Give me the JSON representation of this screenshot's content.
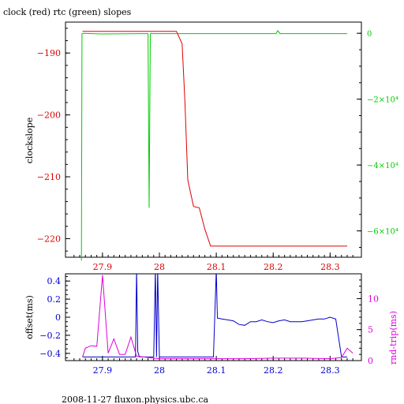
{
  "title": "clock (red) rtc (green) slopes",
  "footer": "2008-11-27 fluxon.physics.ubc.ca",
  "colors": {
    "red": "#dd0000",
    "green": "#00cc00",
    "blue": "#0000cc",
    "magenta": "#dd00dd",
    "black": "#000000"
  },
  "chart_data": [
    {
      "type": "line",
      "title": "clock (red) rtc (green) slopes",
      "ylabel": "clockslope",
      "xlim": [
        27.835,
        28.355
      ],
      "ylim": [
        -223,
        -185
      ],
      "y2lim": [
        -0.00068,
        3.4e-05
      ],
      "x_ticks": [
        "27.9",
        "28",
        "28.1",
        "28.2",
        "28.3"
      ],
      "y_ticks": [
        "-190",
        "-200",
        "-210",
        "-220"
      ],
      "y2_ticks": [
        "0",
        "-2×10⁴",
        "-4×10⁴",
        "-6×10⁴"
      ],
      "series": [
        {
          "name": "clock",
          "axis": "left",
          "color": "red",
          "x": [
            27.865,
            27.95,
            28.0,
            28.03,
            28.04,
            28.045,
            28.05,
            28.06,
            28.07,
            28.08,
            28.09,
            28.1,
            28.2,
            28.3,
            28.33
          ],
          "y": [
            -186.5,
            -186.5,
            -186.5,
            -186.5,
            -188.5,
            -198,
            -210.5,
            -214.8,
            -215,
            -218.5,
            -221.2,
            -221.2,
            -221.2,
            -221.2,
            -221.2
          ]
        },
        {
          "name": "rtc",
          "axis": "right",
          "color": "green",
          "x": [
            27.863,
            27.864,
            27.866,
            27.9,
            27.97,
            27.98,
            27.982,
            27.984,
            27.985,
            27.987,
            28.0,
            28.05,
            28.1,
            28.15,
            28.205,
            28.208,
            28.212,
            28.25,
            28.33
          ],
          "y": [
            -0.00069,
            -1e-06,
            0.0,
            -2e-06,
            -1e-06,
            -1e-06,
            -0.00053,
            -2e-06,
            0.0,
            -1e-06,
            -1e-06,
            -1e-06,
            -1e-06,
            -1e-06,
            -1e-06,
            8e-06,
            -1e-06,
            -1e-06,
            -1e-06
          ]
        }
      ]
    },
    {
      "type": "line",
      "ylabel": "offset(ms)",
      "y2label": "rnd-trip(ms)",
      "xlim": [
        27.835,
        28.355
      ],
      "ylim": [
        -0.48,
        0.48
      ],
      "y2lim": [
        0,
        14
      ],
      "x_ticks": [
        "27.9",
        "28",
        "28.1",
        "28.2",
        "28.3"
      ],
      "y_ticks": [
        "0.4",
        "0.2",
        "0",
        "-0.2",
        "-0.4"
      ],
      "y2_ticks": [
        "10",
        "5",
        "0"
      ],
      "series": [
        {
          "name": "offset",
          "axis": "left",
          "color": "blue",
          "x": [
            27.865,
            27.95,
            27.958,
            27.96,
            27.962,
            27.965,
            27.97,
            27.975,
            27.98,
            27.985,
            27.99,
            27.993,
            27.995,
            27.997,
            28.0,
            28.05,
            28.095,
            28.1,
            28.102,
            28.11,
            28.12,
            28.13,
            28.14,
            28.15,
            28.16,
            28.17,
            28.18,
            28.19,
            28.2,
            28.21,
            28.22,
            28.23,
            28.24,
            28.25,
            28.26,
            28.27,
            28.28,
            28.29,
            28.3,
            28.31,
            28.32,
            28.33
          ],
          "y": [
            -0.44,
            -0.44,
            -0.44,
            1.0,
            -0.38,
            -0.44,
            -0.44,
            -0.44,
            -0.44,
            -0.44,
            -0.44,
            1.0,
            -0.44,
            1.0,
            -0.44,
            -0.44,
            -0.44,
            1.0,
            -0.01,
            -0.02,
            -0.03,
            -0.04,
            -0.08,
            -0.09,
            -0.05,
            -0.05,
            -0.03,
            -0.05,
            -0.06,
            -0.04,
            -0.03,
            -0.05,
            -0.05,
            -0.05,
            -0.04,
            -0.03,
            -0.02,
            -0.02,
            0.0,
            -0.02,
            -0.44,
            -0.44
          ]
        },
        {
          "name": "rnd-trip",
          "axis": "right",
          "color": "magenta",
          "x": [
            27.865,
            27.87,
            27.88,
            27.89,
            27.9,
            27.91,
            27.92,
            27.93,
            27.94,
            27.95,
            27.96,
            27.97,
            27.98,
            27.99,
            28.0,
            28.05,
            28.1,
            28.15,
            28.2,
            28.25,
            28.3,
            28.32,
            28.33,
            28.34
          ],
          "y": [
            0.6,
            2.0,
            2.4,
            2.3,
            13.8,
            1.2,
            3.5,
            1.0,
            1.0,
            3.8,
            0.7,
            0.6,
            0.5,
            0.4,
            0.3,
            0.3,
            0.3,
            0.3,
            0.4,
            0.4,
            0.3,
            0.5,
            2.0,
            1.2
          ]
        }
      ]
    }
  ]
}
